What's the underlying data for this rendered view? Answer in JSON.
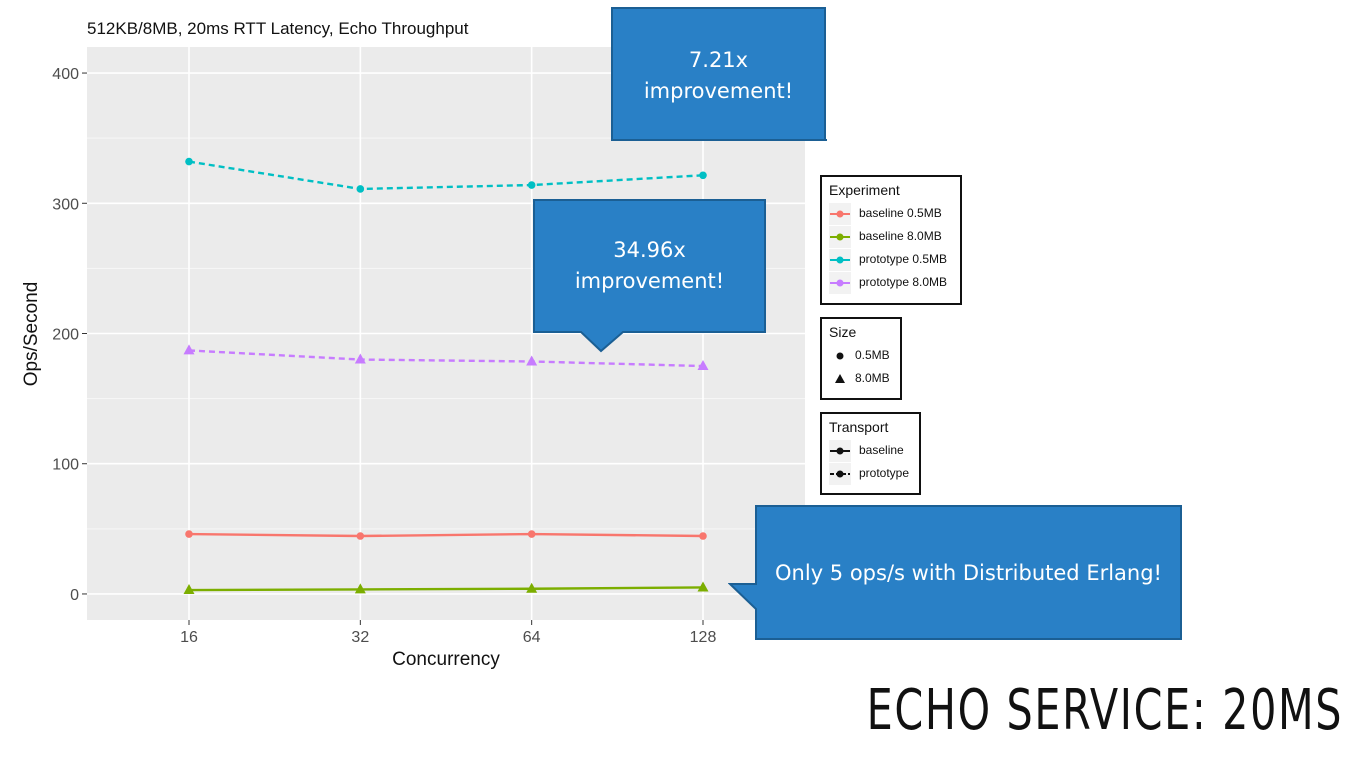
{
  "slide_title": "ECHO SERVICE: 20MS",
  "chart_data": {
    "type": "line",
    "title": "512KB/8MB, 20ms RTT Latency, Echo Throughput",
    "xlabel": "Concurrency",
    "ylabel": "Ops/Second",
    "categories": [
      "16",
      "32",
      "64",
      "128"
    ],
    "ylim": [
      -20,
      420
    ],
    "yticks": [
      0,
      100,
      200,
      300,
      400
    ],
    "grid": true,
    "legend_position": "right",
    "series": [
      {
        "name": "baseline 0.5MB",
        "color": "#f8766d",
        "shape": "circle",
        "dash": "solid",
        "values": [
          46,
          44.5,
          46,
          44.5
        ]
      },
      {
        "name": "baseline 8.0MB",
        "color": "#7cae00",
        "shape": "triangle",
        "dash": "solid",
        "values": [
          3,
          3.5,
          4,
          5
        ]
      },
      {
        "name": "prototype 0.5MB",
        "color": "#00bfc4",
        "shape": "circle",
        "dash": "dashed",
        "values": [
          332,
          311,
          314,
          321.5
        ]
      },
      {
        "name": "prototype 8.0MB",
        "color": "#c77cff",
        "shape": "triangle",
        "dash": "dashed",
        "values": [
          187,
          180,
          178.5,
          175
        ]
      }
    ]
  },
  "legends": {
    "experiment": {
      "title": "Experiment",
      "items": [
        {
          "label": "baseline 0.5MB",
          "color": "#f8766d"
        },
        {
          "label": "baseline 8.0MB",
          "color": "#7cae00"
        },
        {
          "label": "prototype 0.5MB",
          "color": "#00bfc4"
        },
        {
          "label": "prototype 8.0MB",
          "color": "#c77cff"
        }
      ]
    },
    "size": {
      "title": "Size",
      "items": [
        {
          "label": "0.5MB",
          "shape": "circle"
        },
        {
          "label": "8.0MB",
          "shape": "triangle"
        }
      ]
    },
    "transport": {
      "title": "Transport",
      "items": [
        {
          "label": "baseline"
        },
        {
          "label": "prototype"
        }
      ]
    }
  },
  "callouts": {
    "top": {
      "line1": "7.21x",
      "line2": "improvement!"
    },
    "middle": {
      "line1": "34.96x",
      "line2": "improvement!"
    },
    "bottom": {
      "text": "Only 5 ops/s with Distributed Erlang!"
    }
  },
  "colors": {
    "panel": "#ebebeb",
    "callout": "#2980c6",
    "callout_border": "#1b5f94"
  }
}
